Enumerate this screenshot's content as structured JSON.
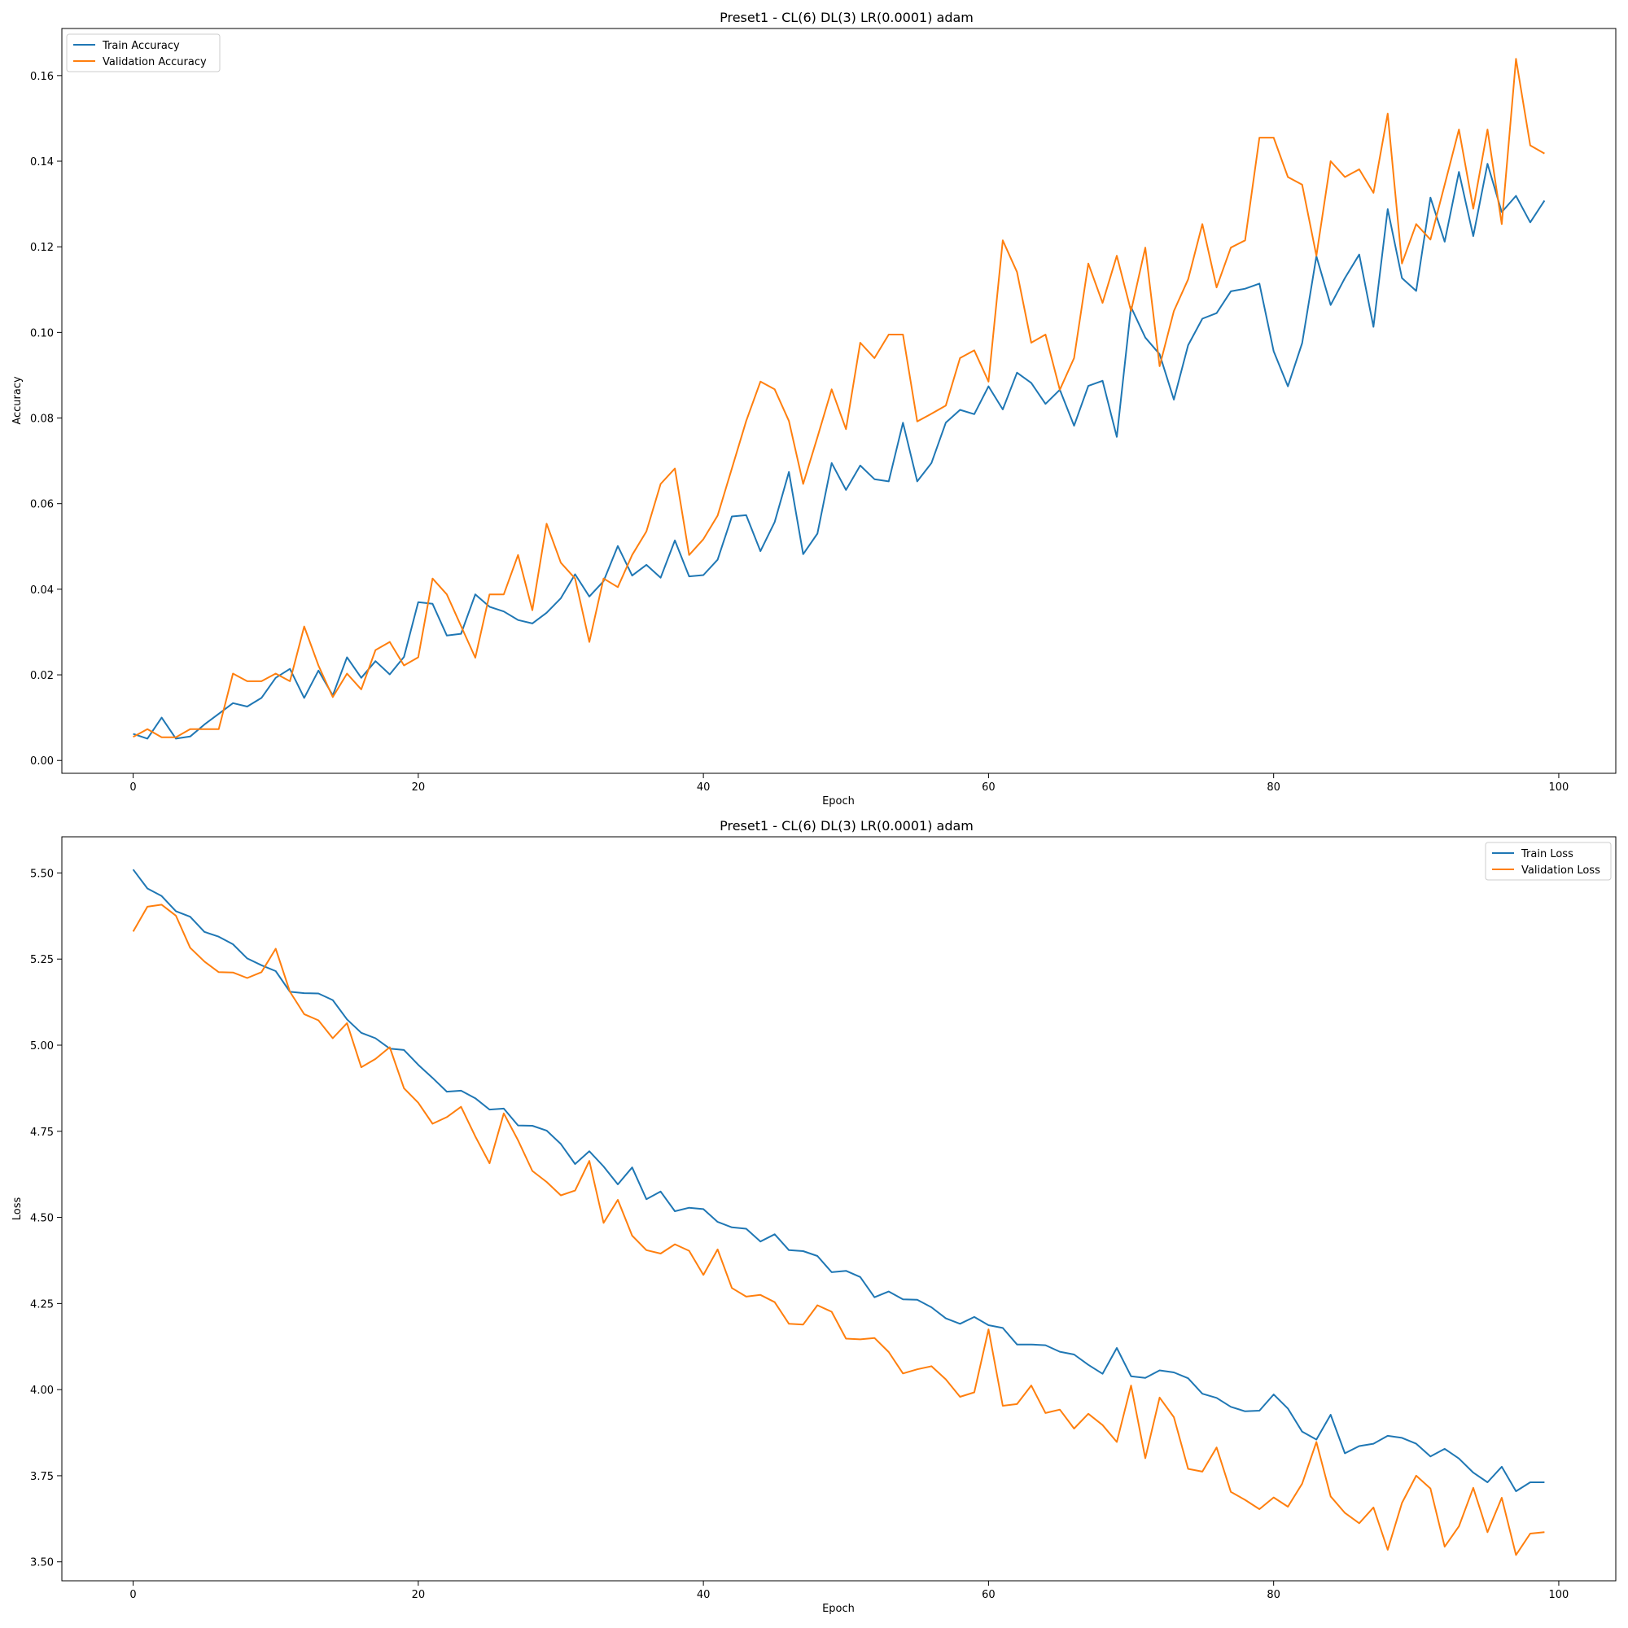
{
  "colors": {
    "train": "#1f77b4",
    "validation": "#ff7f0e"
  },
  "chart_data": [
    {
      "type": "line",
      "title": "Preset1 - CL(6) DL(3) LR(0.0001) adam",
      "xlabel": "Epoch",
      "ylabel": "Accuracy",
      "xlim": [
        -5,
        104
      ],
      "ylim": [
        -0.003,
        0.171
      ],
      "xticks": [
        0,
        20,
        40,
        60,
        80,
        100
      ],
      "xtick_labels": [
        "0",
        "20",
        "40",
        "60",
        "80",
        "100"
      ],
      "yticks": [
        0.0,
        0.02,
        0.04,
        0.06,
        0.08,
        0.1,
        0.12,
        0.14,
        0.16
      ],
      "ytick_labels": [
        "0.00",
        "0.02",
        "0.04",
        "0.06",
        "0.08",
        "0.10",
        "0.12",
        "0.14",
        "0.16"
      ],
      "grid": false,
      "legend": "upper-left",
      "series": [
        {
          "name": "Train Accuracy",
          "color": "#1f77b4",
          "values": [
            0.0062,
            0.0051,
            0.01,
            0.0051,
            0.0056,
            0.0084,
            0.0109,
            0.0134,
            0.0126,
            0.0146,
            0.0193,
            0.0214,
            0.0146,
            0.021,
            0.0152,
            0.0241,
            0.0193,
            0.0232,
            0.0201,
            0.0242,
            0.037,
            0.0366,
            0.0292,
            0.0296,
            0.0388,
            0.0359,
            0.0348,
            0.0328,
            0.032,
            0.0345,
            0.0379,
            0.0435,
            0.0383,
            0.0419,
            0.0501,
            0.0432,
            0.0457,
            0.0427,
            0.0514,
            0.043,
            0.0433,
            0.0469,
            0.057,
            0.0573,
            0.0489,
            0.0557,
            0.0674,
            0.0482,
            0.053,
            0.0695,
            0.0632,
            0.0689,
            0.0657,
            0.0652,
            0.0789,
            0.0652,
            0.0695,
            0.0789,
            0.0819,
            0.0809,
            0.0874,
            0.082,
            0.0906,
            0.0882,
            0.0833,
            0.0866,
            0.0782,
            0.0875,
            0.0887,
            0.0756,
            0.1059,
            0.0988,
            0.0949,
            0.0843,
            0.097,
            0.1032,
            0.1045,
            0.1096,
            0.1102,
            0.1114,
            0.0956,
            0.0874,
            0.0975,
            0.1178,
            0.1064,
            0.1127,
            0.1182,
            0.1013,
            0.1288,
            0.1127,
            0.1097,
            0.1315,
            0.1212,
            0.1375,
            0.1225,
            0.1394,
            0.1281,
            0.1319,
            0.1257,
            0.1308
          ]
        },
        {
          "name": "Validation Accuracy",
          "color": "#ff7f0e",
          "values": [
            0.0055,
            0.0073,
            0.0054,
            0.0054,
            0.0073,
            0.0073,
            0.0073,
            0.0203,
            0.0185,
            0.0185,
            0.0203,
            0.0185,
            0.0313,
            0.0222,
            0.0148,
            0.0203,
            0.0166,
            0.0258,
            0.0277,
            0.0222,
            0.0241,
            0.0425,
            0.0388,
            0.0314,
            0.024,
            0.0388,
            0.0388,
            0.048,
            0.0351,
            0.0553,
            0.0462,
            0.0425,
            0.0277,
            0.0425,
            0.0405,
            0.048,
            0.0535,
            0.0646,
            0.0682,
            0.048,
            0.0517,
            0.0572,
            0.0682,
            0.0793,
            0.0885,
            0.0867,
            0.0793,
            0.0646,
            0.0755,
            0.0867,
            0.0774,
            0.0976,
            0.094,
            0.0995,
            0.0995,
            0.0792,
            0.081,
            0.0829,
            0.094,
            0.0958,
            0.0885,
            0.1215,
            0.1141,
            0.0976,
            0.0995,
            0.0866,
            0.094,
            0.1161,
            0.1069,
            0.1179,
            0.105,
            0.1198,
            0.0921,
            0.105,
            0.1124,
            0.1253,
            0.1105,
            0.1198,
            0.1215,
            0.1455,
            0.1455,
            0.1363,
            0.1345,
            0.1179,
            0.14,
            0.1363,
            0.1381,
            0.1326,
            0.1511,
            0.1161,
            0.1253,
            0.1217,
            0.1345,
            0.1474,
            0.1289,
            0.1474,
            0.1253,
            0.1639,
            0.1437,
            0.1418
          ]
        }
      ]
    },
    {
      "type": "line",
      "title": "Preset1 - CL(6) DL(3) LR(0.0001) adam",
      "xlabel": "Epoch",
      "ylabel": "Loss",
      "xlim": [
        -5,
        104
      ],
      "ylim": [
        3.445,
        5.605
      ],
      "xticks": [
        0,
        20,
        40,
        60,
        80,
        100
      ],
      "xtick_labels": [
        "0",
        "20",
        "40",
        "60",
        "80",
        "100"
      ],
      "yticks": [
        3.5,
        3.75,
        4.0,
        4.25,
        4.5,
        4.75,
        5.0,
        5.25,
        5.5
      ],
      "ytick_labels": [
        "3.50",
        "3.75",
        "4.00",
        "4.25",
        "4.50",
        "4.75",
        "5.00",
        "5.25",
        "5.50"
      ],
      "grid": false,
      "legend": "upper-right",
      "series": [
        {
          "name": "Train Loss",
          "color": "#1f77b4",
          "values": [
            5.51,
            5.455,
            5.433,
            5.389,
            5.373,
            5.329,
            5.315,
            5.293,
            5.252,
            5.232,
            5.215,
            5.155,
            5.151,
            5.15,
            5.131,
            5.075,
            5.036,
            5.02,
            4.99,
            4.986,
            4.943,
            4.905,
            4.865,
            4.868,
            4.846,
            4.813,
            4.816,
            4.767,
            4.766,
            4.752,
            4.713,
            4.655,
            4.692,
            4.648,
            4.596,
            4.645,
            4.553,
            4.575,
            4.518,
            4.528,
            4.524,
            4.487,
            4.471,
            4.467,
            4.43,
            4.451,
            4.405,
            4.402,
            4.388,
            4.341,
            4.345,
            4.327,
            4.268,
            4.285,
            4.262,
            4.261,
            4.239,
            4.207,
            4.191,
            4.211,
            4.187,
            4.179,
            4.131,
            4.131,
            4.129,
            4.11,
            4.102,
            4.072,
            4.046,
            4.121,
            4.039,
            4.034,
            4.056,
            4.05,
            4.033,
            3.988,
            3.976,
            3.95,
            3.937,
            3.939,
            3.986,
            3.945,
            3.878,
            3.855,
            3.927,
            3.815,
            3.836,
            3.843,
            3.866,
            3.86,
            3.843,
            3.806,
            3.828,
            3.8,
            3.759,
            3.731,
            3.776,
            3.705,
            3.731,
            3.731
          ]
        },
        {
          "name": "Validation Loss",
          "color": "#ff7f0e",
          "values": [
            5.33,
            5.402,
            5.408,
            5.376,
            5.283,
            5.243,
            5.212,
            5.211,
            5.195,
            5.212,
            5.28,
            5.155,
            5.09,
            5.072,
            5.02,
            5.064,
            4.936,
            4.96,
            4.994,
            4.875,
            4.833,
            4.772,
            4.791,
            4.821,
            4.735,
            4.657,
            4.802,
            4.724,
            4.635,
            4.603,
            4.564,
            4.578,
            4.664,
            4.484,
            4.551,
            4.447,
            4.405,
            4.395,
            4.422,
            4.403,
            4.333,
            4.407,
            4.295,
            4.27,
            4.275,
            4.254,
            4.191,
            4.189,
            4.245,
            4.226,
            4.148,
            4.146,
            4.15,
            4.109,
            4.047,
            4.059,
            4.068,
            4.03,
            3.979,
            3.992,
            4.175,
            3.953,
            3.958,
            4.012,
            3.932,
            3.942,
            3.887,
            3.93,
            3.897,
            3.848,
            4.012,
            3.801,
            3.977,
            3.92,
            3.77,
            3.762,
            3.832,
            3.703,
            3.68,
            3.653,
            3.687,
            3.66,
            3.727,
            3.848,
            3.69,
            3.642,
            3.612,
            3.658,
            3.535,
            3.671,
            3.75,
            3.713,
            3.544,
            3.603,
            3.715,
            3.586,
            3.686,
            3.52,
            3.582,
            3.586
          ]
        }
      ]
    }
  ]
}
